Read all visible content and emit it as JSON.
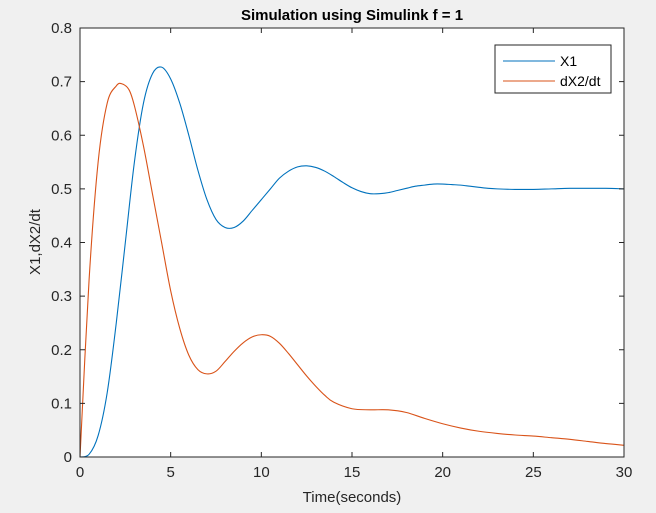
{
  "figure": {
    "background": "#f0f0f0",
    "axes_background": "#ffffff"
  },
  "chart_data": {
    "type": "line",
    "title": "Simulation using Simulink  f = 1",
    "xlabel": "Time(seconds)",
    "ylabel": "X1,dX2/dt",
    "xlim": [
      0,
      30
    ],
    "ylim": [
      0,
      0.8
    ],
    "xticks": [
      0,
      5,
      10,
      15,
      20,
      25,
      30
    ],
    "yticks": [
      0,
      0.1,
      0.2,
      0.3,
      0.4,
      0.5,
      0.6,
      0.7,
      0.8
    ],
    "xtick_labels": [
      "0",
      "5",
      "10",
      "15",
      "20",
      "25",
      "30"
    ],
    "ytick_labels": [
      "0",
      "0.1",
      "0.2",
      "0.3",
      "0.4",
      "0.5",
      "0.6",
      "0.7",
      "0.8"
    ],
    "grid": false,
    "legend_position": "top-right",
    "series": [
      {
        "name": "X1",
        "color": "#0072bd",
        "x": [
          0,
          0.5,
          1,
          1.5,
          2,
          2.5,
          3,
          3.5,
          4,
          4.5,
          5,
          5.5,
          6,
          6.5,
          7,
          7.5,
          8,
          8.5,
          9,
          9.5,
          10,
          10.5,
          11,
          11.5,
          12,
          12.5,
          13,
          13.5,
          14,
          14.5,
          15,
          15.5,
          16,
          16.5,
          17,
          17.5,
          18,
          18.5,
          19,
          19.5,
          20,
          20.5,
          21,
          21.5,
          22,
          22.5,
          23,
          24,
          25,
          26,
          27,
          28,
          29,
          30
        ],
        "y": [
          0,
          0.005,
          0.04,
          0.12,
          0.25,
          0.4,
          0.55,
          0.66,
          0.715,
          0.727,
          0.705,
          0.66,
          0.6,
          0.535,
          0.48,
          0.443,
          0.428,
          0.428,
          0.44,
          0.46,
          0.48,
          0.5,
          0.52,
          0.533,
          0.541,
          0.543,
          0.54,
          0.533,
          0.523,
          0.512,
          0.502,
          0.495,
          0.491,
          0.491,
          0.493,
          0.497,
          0.501,
          0.505,
          0.507,
          0.509,
          0.509,
          0.508,
          0.507,
          0.505,
          0.503,
          0.501,
          0.5,
          0.499,
          0.499,
          0.5,
          0.501,
          0.501,
          0.501,
          0.5
        ]
      },
      {
        "name": "dX2/dt",
        "color": "#d95319",
        "x": [
          0,
          0.5,
          1,
          1.5,
          2,
          2.3,
          2.7,
          3,
          3.5,
          4,
          4.5,
          5,
          5.5,
          6,
          6.5,
          7,
          7.5,
          8,
          8.5,
          9,
          9.5,
          10,
          10.5,
          11,
          11.5,
          12,
          12.5,
          13,
          13.5,
          14,
          15,
          16,
          17,
          18,
          19,
          20,
          21,
          22,
          23,
          24,
          25,
          26,
          27,
          28,
          29,
          30
        ],
        "y": [
          0,
          0.33,
          0.55,
          0.66,
          0.692,
          0.696,
          0.685,
          0.655,
          0.58,
          0.49,
          0.4,
          0.31,
          0.24,
          0.19,
          0.163,
          0.155,
          0.16,
          0.178,
          0.197,
          0.213,
          0.224,
          0.228,
          0.225,
          0.212,
          0.193,
          0.172,
          0.151,
          0.132,
          0.115,
          0.102,
          0.09,
          0.088,
          0.088,
          0.083,
          0.072,
          0.062,
          0.054,
          0.048,
          0.044,
          0.041,
          0.039,
          0.036,
          0.033,
          0.029,
          0.025,
          0.022
        ]
      }
    ]
  }
}
